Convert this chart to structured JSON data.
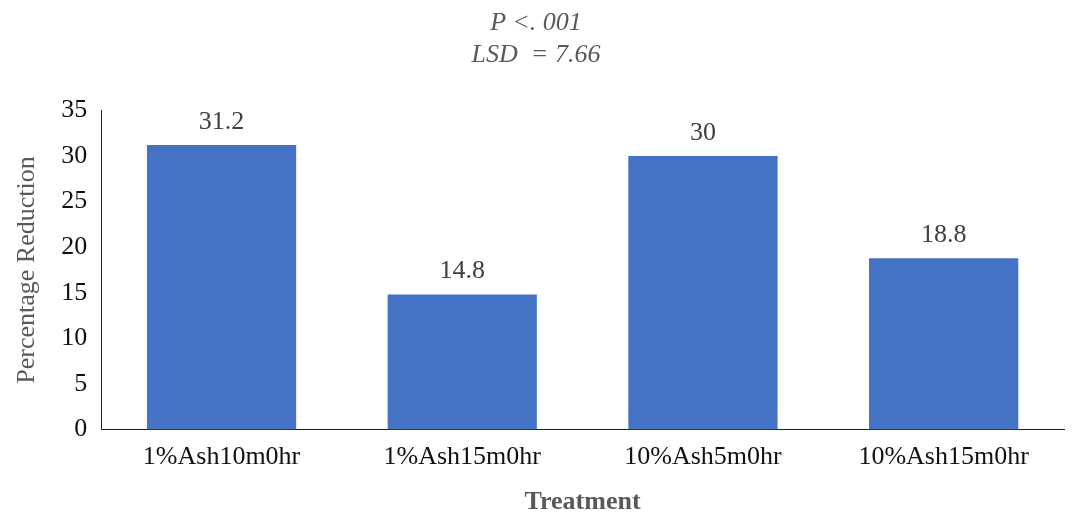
{
  "chart_data": {
    "type": "bar",
    "title": "P <. 001",
    "subtitle": "LSD  = 7.66",
    "xlabel": "Treatment",
    "ylabel": "Percentage Reduction",
    "categories": [
      "1%Ash10m0hr",
      "1%Ash15m0hr",
      "10%Ash5m0hr",
      "10%Ash15m0hr"
    ],
    "values": [
      31.2,
      14.8,
      30,
      18.8
    ],
    "color": "#4472c4",
    "ylim": [
      0,
      35
    ],
    "yticks": [
      0,
      5,
      10,
      15,
      20,
      25,
      30,
      35
    ],
    "grid": false,
    "legend": false,
    "data_labels": true
  }
}
